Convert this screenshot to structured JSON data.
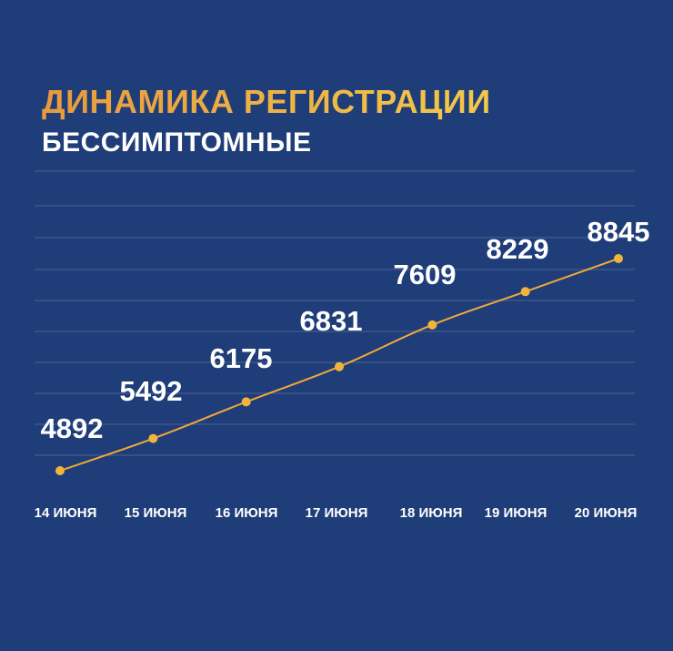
{
  "title": "ДИНАМИКА РЕГИСТРАЦИИ",
  "subtitle": "БЕССИМПТОМНЫЕ",
  "colors": {
    "background": "#1f3d78",
    "line": "#f0a93a",
    "point": "#f2b43b",
    "title_start": "#e89a3c",
    "title_end": "#f2c94c"
  },
  "chart_data": {
    "type": "line",
    "categories": [
      "14 ИЮНЯ",
      "15 ИЮНЯ",
      "16 ИЮНЯ",
      "17 ИЮНЯ",
      "18 ИЮНЯ",
      "19 ИЮНЯ",
      "20 ИЮНЯ"
    ],
    "series": [
      {
        "values": [
          4892,
          5492,
          6175,
          6831,
          7609,
          8229,
          8845
        ]
      }
    ],
    "data_labels": true,
    "grid": true,
    "yaxis_visible": false
  }
}
